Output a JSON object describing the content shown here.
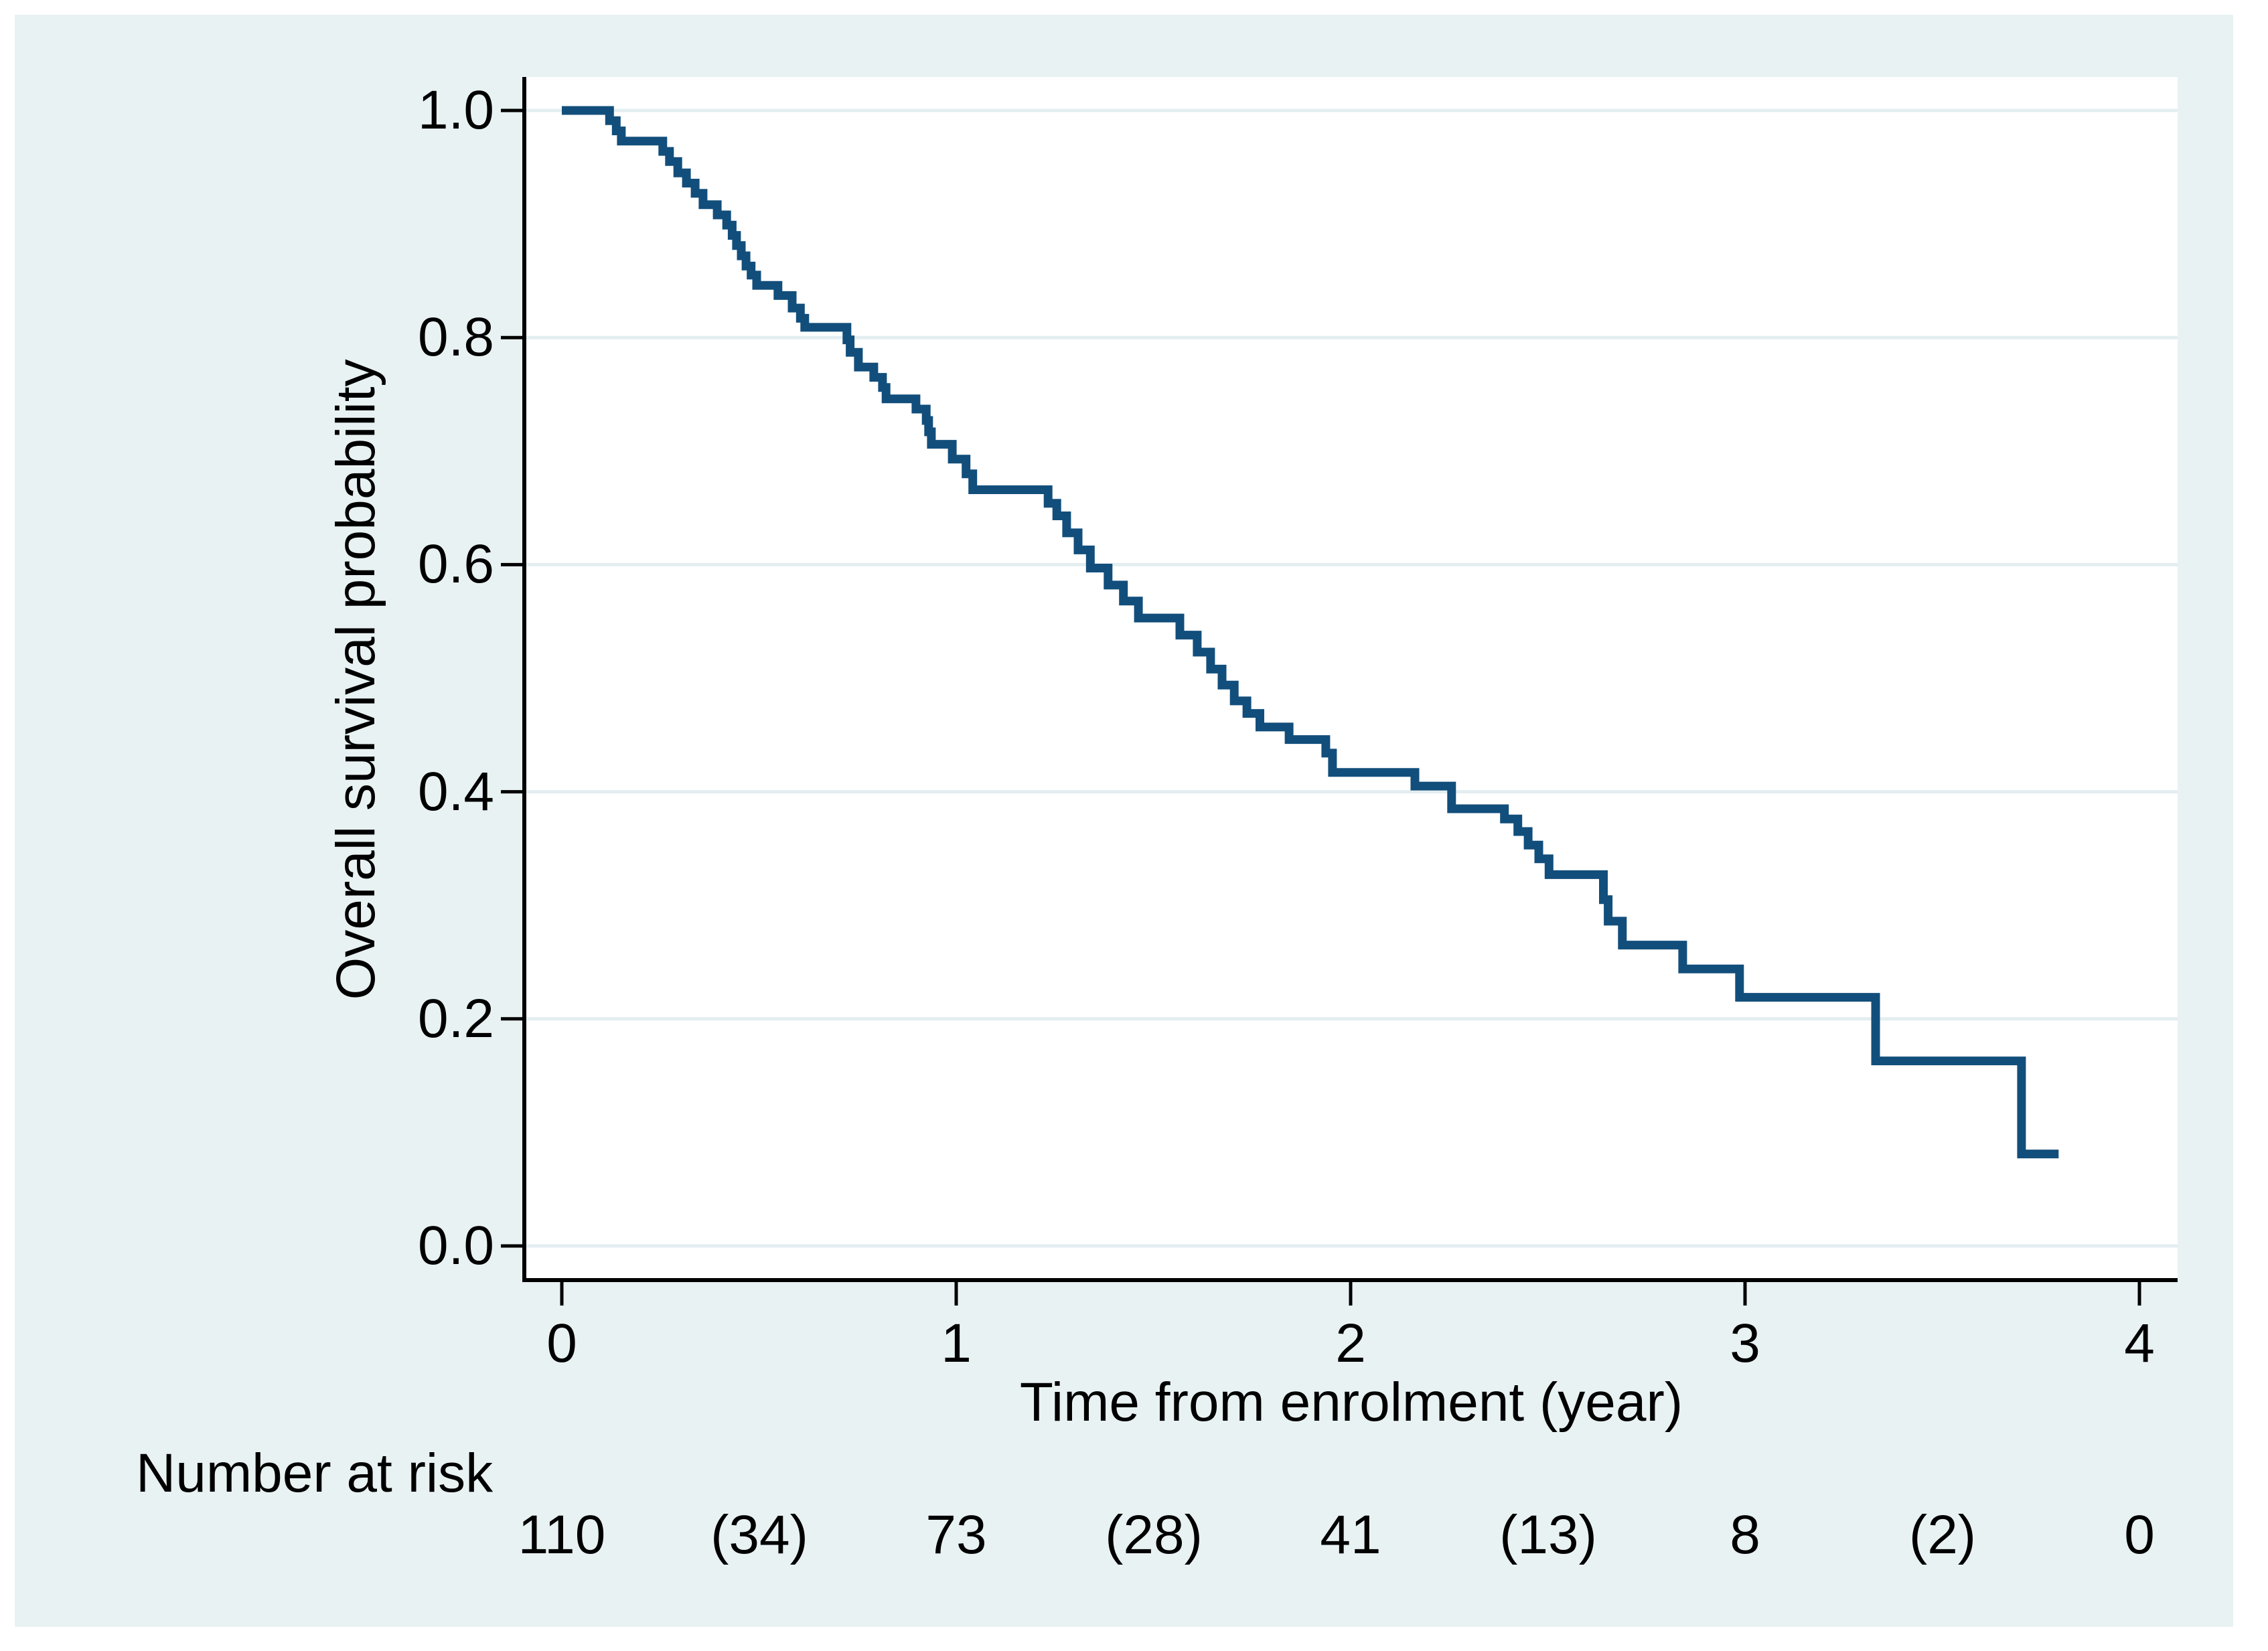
{
  "chart_data": {
    "type": "line",
    "subtype": "kaplan_meier_step_curve",
    "title": "",
    "xlabel": "Time from enrolment (year)",
    "ylabel": "Overall survival probability",
    "xlim": [
      0,
      4
    ],
    "ylim": [
      0.0,
      1.0
    ],
    "x_tick_labels": [
      "0",
      "1",
      "2",
      "3",
      "4"
    ],
    "y_tick_labels": [
      "1.0",
      "0.8",
      "0.6",
      "0.4",
      "0.2",
      "0.0"
    ],
    "grid": "horizontal-only",
    "legend": "none",
    "series": [
      {
        "name": "Overall survival probability",
        "color": "#124E7B",
        "end_time": 3.795,
        "step_points": [
          [
            0.0,
            1.0
          ],
          [
            0.121,
            0.991
          ],
          [
            0.138,
            0.982
          ],
          [
            0.151,
            0.973
          ],
          [
            0.256,
            0.964
          ],
          [
            0.273,
            0.955
          ],
          [
            0.294,
            0.945
          ],
          [
            0.316,
            0.936
          ],
          [
            0.338,
            0.927
          ],
          [
            0.358,
            0.917
          ],
          [
            0.394,
            0.908
          ],
          [
            0.418,
            0.899
          ],
          [
            0.432,
            0.89
          ],
          [
            0.443,
            0.881
          ],
          [
            0.455,
            0.872
          ],
          [
            0.467,
            0.863
          ],
          [
            0.48,
            0.855
          ],
          [
            0.494,
            0.846
          ],
          [
            0.548,
            0.837
          ],
          [
            0.584,
            0.826
          ],
          [
            0.605,
            0.817
          ],
          [
            0.616,
            0.809
          ],
          [
            0.723,
            0.798
          ],
          [
            0.731,
            0.787
          ],
          [
            0.752,
            0.774
          ],
          [
            0.791,
            0.765
          ],
          [
            0.813,
            0.756
          ],
          [
            0.822,
            0.746
          ],
          [
            0.898,
            0.737
          ],
          [
            0.924,
            0.727
          ],
          [
            0.93,
            0.717
          ],
          [
            0.937,
            0.706
          ],
          [
            0.99,
            0.693
          ],
          [
            1.025,
            0.68
          ],
          [
            1.042,
            0.666
          ],
          [
            1.233,
            0.654
          ],
          [
            1.255,
            0.643
          ],
          [
            1.28,
            0.628
          ],
          [
            1.309,
            0.613
          ],
          [
            1.34,
            0.597
          ],
          [
            1.385,
            0.582
          ],
          [
            1.424,
            0.568
          ],
          [
            1.462,
            0.553
          ],
          [
            1.567,
            0.538
          ],
          [
            1.611,
            0.523
          ],
          [
            1.645,
            0.508
          ],
          [
            1.674,
            0.494
          ],
          [
            1.705,
            0.48
          ],
          [
            1.737,
            0.469
          ],
          [
            1.77,
            0.457
          ],
          [
            1.844,
            0.446
          ],
          [
            1.937,
            0.434
          ],
          [
            1.954,
            0.417
          ],
          [
            2.163,
            0.405
          ],
          [
            2.256,
            0.385
          ],
          [
            2.39,
            0.376
          ],
          [
            2.424,
            0.365
          ],
          [
            2.45,
            0.353
          ],
          [
            2.477,
            0.341
          ],
          [
            2.503,
            0.327
          ],
          [
            2.641,
            0.305
          ],
          [
            2.653,
            0.286
          ],
          [
            2.689,
            0.265
          ],
          [
            2.842,
            0.244
          ],
          [
            2.986,
            0.219
          ],
          [
            3.331,
            0.163
          ],
          [
            3.701,
            0.081
          ]
        ]
      }
    ]
  },
  "risk_table": {
    "label": "Number at risk",
    "time_points": [
      0,
      0.5,
      1,
      1.5,
      2,
      2.5,
      3,
      3.5,
      4
    ],
    "values": [
      "110",
      "(34)",
      "73",
      "(28)",
      "41",
      "(13)",
      "8",
      "(2)",
      "0"
    ]
  },
  "colors": {
    "background": "#FFFFFF",
    "panel": "#E9F2F3",
    "plot_background": "#FFFFFF",
    "gridline": "#E3EEF1",
    "axis": "#000000",
    "text": "#000000",
    "curve": "#124E7B"
  }
}
